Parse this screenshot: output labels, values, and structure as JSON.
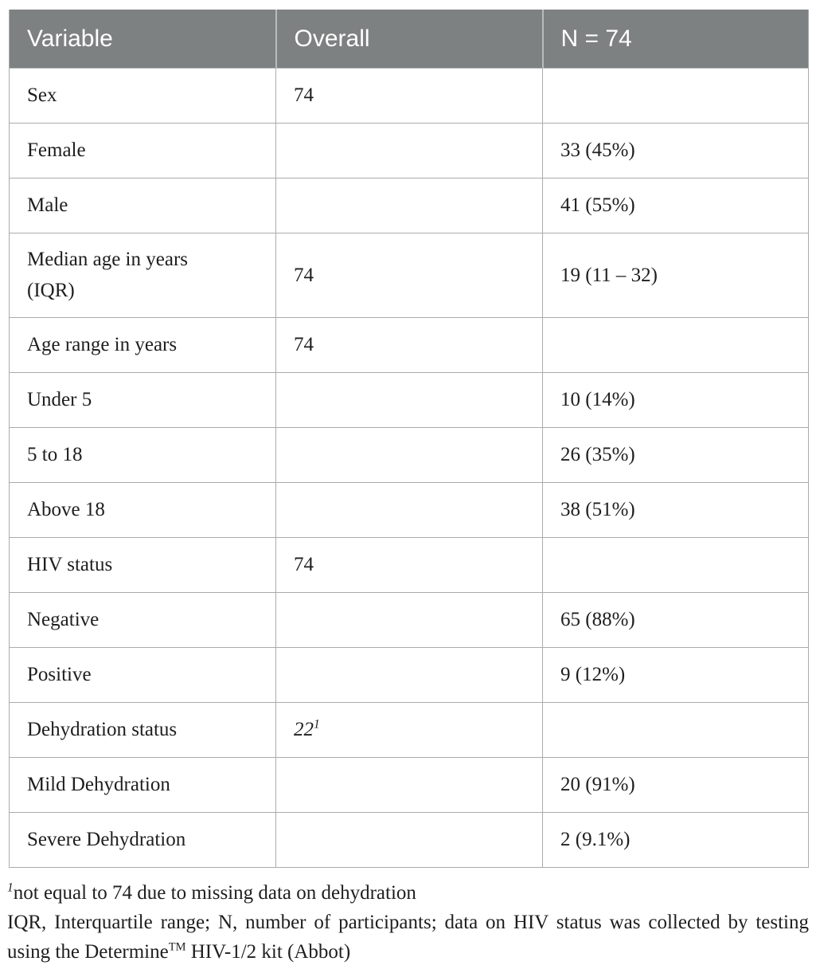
{
  "table": {
    "columns": [
      {
        "label": "Variable"
      },
      {
        "label": "Overall"
      },
      {
        "label": "N = 74"
      }
    ],
    "rows": [
      {
        "label": "Sex",
        "level": 0,
        "overall": "74",
        "n": ""
      },
      {
        "label": "Female",
        "level": 1,
        "overall": "",
        "n": "33 (45%)"
      },
      {
        "label": "Male",
        "level": 1,
        "overall": "",
        "n": "41 (55%)"
      },
      {
        "label": "Median age in years (IQR)",
        "level": 0,
        "overall": "74",
        "n": "19 (11 – 32)",
        "tall": true,
        "wrap": true
      },
      {
        "label": "Age range in years",
        "level": 0,
        "overall": "74",
        "n": ""
      },
      {
        "label": "Under 5",
        "level": 1,
        "overall": "",
        "n": "10 (14%)"
      },
      {
        "label": "5 to 18",
        "level": 1,
        "overall": "",
        "n": "26 (35%)"
      },
      {
        "label": "Above 18",
        "level": 1,
        "overall": "",
        "n": "38 (51%)"
      },
      {
        "label": "HIV status",
        "level": 0,
        "overall": "74",
        "n": ""
      },
      {
        "label": "Negative",
        "level": 1,
        "overall": "",
        "n": "65 (88%)"
      },
      {
        "label": "Positive",
        "level": 1,
        "overall": "",
        "n": "9 (12%)"
      },
      {
        "label": "Dehydration status",
        "level": 0,
        "overall": "22",
        "overall_sup": "1",
        "overall_italic": true,
        "n": ""
      },
      {
        "label": "Mild Dehydration",
        "level": 1,
        "overall": "",
        "n": "20 (91%)"
      },
      {
        "label": "Severe Dehydration",
        "level": 1,
        "overall": "",
        "n": "2 (9.1%)"
      }
    ]
  },
  "footnotes": [
    {
      "marker": "1",
      "text": "not equal to 74 due to missing data on dehydration"
    },
    {
      "before_tm": "IQR, Interquartile range; N, number of participants; data on HIV status was collected by testing using the Determine",
      "tm": "TM",
      "after_tm": " HIV-1/2 kit (Abbot)"
    }
  ],
  "colors": {
    "header_bg": "#7e8181",
    "header_text": "#ffffff",
    "border": "#a9acac",
    "body_text": "#1e1e1e",
    "page_bg": "#ffffff"
  }
}
